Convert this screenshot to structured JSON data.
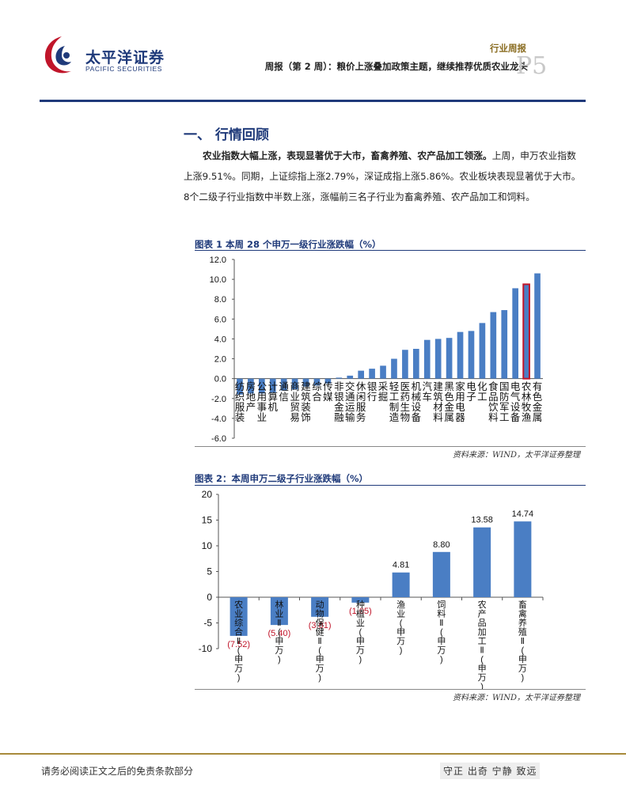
{
  "header": {
    "logo_cn": "太平洋证券",
    "logo_en": "PACIFIC SECURITIES",
    "category": "行业周报",
    "report_title": "周报（第 2 周）：粮价上涨叠加政策主题，继续推荐优质农业龙头",
    "page_number": "P5"
  },
  "section": {
    "title": "一、 行情回顾",
    "paragraph_bold": "农业指数大幅上涨，表现显著优于大市，畜禽养殖、农产品加工领涨。",
    "paragraph_rest": "上周，申万农业指数上涨9.51%。同期，上证综指上涨2.79%，深证成指上涨5.86%。农业板块表现显著优于大市。8个二级子行业指数中半数上涨，涨幅前三名子行业为畜禽养殖、农产品加工和饲料。"
  },
  "colors": {
    "bar": "#4a7ec4",
    "highlight": "#c0152a",
    "navy": "#1f3a7a",
    "gold": "#a88a3a"
  },
  "chart_data": [
    {
      "type": "bar",
      "title": "图表 1 本周 28 个申万一级行业涨跌幅（%）",
      "source": "资料来源：WIND，太平洋证券整理",
      "ylim": [
        -6,
        12
      ],
      "yticks": [
        "12.0",
        "10.0",
        "8.0",
        "6.0",
        "4.0",
        "2.0",
        "0.0",
        "-2.0",
        "-4.0",
        "-6.0"
      ],
      "highlight_index": 26,
      "categories": [
        "纺织服装",
        "房地产",
        "公用事业",
        "计算机",
        "通信",
        "商业贸易",
        "建筑装饰",
        "综合",
        "传媒",
        "非银金融",
        "交通运输",
        "休闲服务",
        "银行",
        "采掘",
        "轻工制造",
        "医药生物",
        "机械设备",
        "汽车",
        "建筑材料",
        "黑色金属",
        "家用电器",
        "电子",
        "化工",
        "食品饮料",
        "国防军工",
        "电气设备",
        "农林牧渔",
        "有色金属"
      ],
      "values": [
        -1.6,
        -1.5,
        -1.5,
        -1.4,
        -1.2,
        -1.1,
        -0.8,
        -0.7,
        -0.5,
        0.1,
        0.3,
        0.8,
        1.0,
        1.3,
        2.0,
        2.9,
        3.0,
        3.9,
        4.0,
        4.1,
        4.7,
        4.8,
        5.6,
        6.7,
        6.9,
        9.1,
        9.5,
        10.6
      ]
    },
    {
      "type": "bar",
      "title": "图表 2：本周申万二级子行业涨跌幅（%）",
      "source": "资料来源：WIND，太平洋证券整理",
      "ylim": [
        -10,
        20
      ],
      "yticks": [
        "20",
        "15",
        "10",
        "5",
        "0",
        "-5",
        "-10"
      ],
      "categories": [
        "农业综合Ⅱ(申万)",
        "林业Ⅱ(申万)",
        "动物保健Ⅱ(申万)",
        "种植业(申万)",
        "渔业(申万)",
        "饲料Ⅱ(申万)",
        "农产品加工Ⅱ(申万)",
        "畜禽养殖Ⅱ(申万)"
      ],
      "values": [
        -7.52,
        -5.4,
        -3.81,
        -1.05,
        4.81,
        8.8,
        13.58,
        14.74
      ],
      "value_labels": [
        "(7.52)",
        "(5.40)",
        "(3.81)",
        "(1.05)",
        "4.81",
        "8.80",
        "13.58",
        "14.74"
      ]
    }
  ],
  "footer": {
    "disclaimer": "请务必阅读正文之后的免责条款部分",
    "slogan": "守正 出奇 宁静 致远"
  }
}
